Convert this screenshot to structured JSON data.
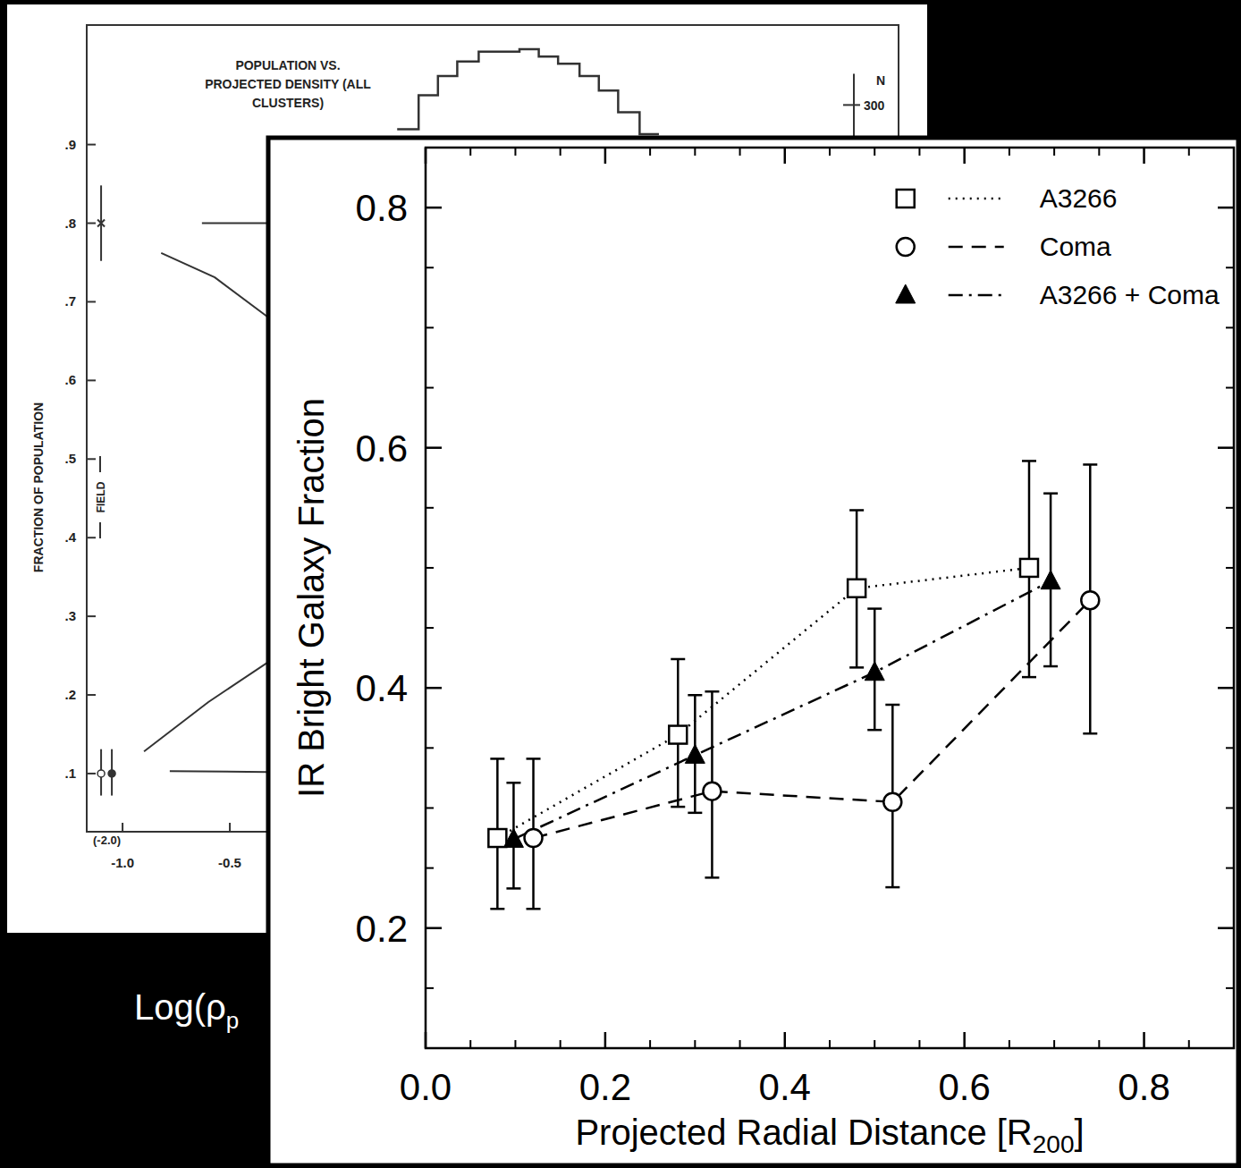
{
  "chart_data": [
    {
      "type": "line",
      "ylabel": "IR Bright Galaxy Fraction",
      "xlabel": "Projected Radial Distance [R",
      "xlabel_sub": "200",
      "xlabel_end": "]",
      "xlim": [
        0,
        0.9
      ],
      "ylim": [
        0.1,
        0.85
      ],
      "xticks": [
        {
          "value": 0,
          "label": "0.0"
        },
        {
          "value": 0.2,
          "label": "0.2"
        },
        {
          "value": 0.4,
          "label": "0.4"
        },
        {
          "value": 0.6,
          "label": "0.6"
        },
        {
          "value": 0.8,
          "label": "0.8"
        }
      ],
      "yticks": [
        {
          "value": 0.2,
          "label": "0.2"
        },
        {
          "value": 0.4,
          "label": "0.4"
        },
        {
          "value": 0.6,
          "label": "0.6"
        },
        {
          "value": 0.8,
          "label": "0.8"
        }
      ],
      "grid": false,
      "legend": "top-right",
      "series": [
        {
          "name": "A3266",
          "color": "#000000",
          "marker": "square",
          "line_style": "dotted",
          "x": [
            0.08,
            0.281,
            0.48,
            0.672
          ],
          "values": [
            0.275,
            0.361,
            0.483,
            0.5
          ],
          "lower": [
            0.216,
            0.301,
            0.417,
            0.409
          ],
          "upper": [
            0.341,
            0.424,
            0.548,
            0.589
          ]
        },
        {
          "name": "Coma",
          "color": "#000000",
          "marker": "circle",
          "line_style": "dashed",
          "x": [
            0.12,
            0.319,
            0.52,
            0.74
          ],
          "values": [
            0.275,
            0.314,
            0.305,
            0.473
          ],
          "lower": [
            0.216,
            0.242,
            0.234,
            0.362
          ],
          "upper": [
            0.341,
            0.397,
            0.386,
            0.586
          ]
        },
        {
          "name": "A3266 + Coma",
          "color": "#000000",
          "marker": "triangle",
          "line_style": "dashdot",
          "x": [
            0.098,
            0.3,
            0.5,
            0.696
          ],
          "values": [
            0.274,
            0.344,
            0.413,
            0.489
          ],
          "lower": [
            0.233,
            0.296,
            0.365,
            0.418
          ],
          "upper": [
            0.321,
            0.394,
            0.466,
            0.562
          ]
        }
      ]
    },
    {
      "type": "line",
      "title": "POPULATION VS. PROJECTED DENSITY (ALL CLUSTERS)",
      "ylabel": "FRACTION OF POPULATION",
      "xlabel": "Log(ρ",
      "xlabel_sub": "p",
      "y2label": "N",
      "xlim": [
        -1.167,
        2.617
      ],
      "ylim": [
        0.026,
        1.052
      ],
      "y2lim": [
        0,
        333
      ],
      "xticks": [
        {
          "value": -1,
          "label": "-1.0"
        },
        {
          "value": -0.5,
          "label": "-0.5"
        }
      ],
      "yticks": [
        {
          "value": 0.1,
          "label": ".1"
        },
        {
          "value": 0.2,
          "label": ".2"
        },
        {
          "value": 0.3,
          "label": ".3"
        },
        {
          "value": 0.4,
          "label": ".4"
        },
        {
          "value": 0.5,
          "label": ".5"
        },
        {
          "value": 0.6,
          "label": ".6"
        },
        {
          "value": 0.7,
          "label": ".7"
        },
        {
          "value": 0.8,
          "label": ".8"
        },
        {
          "value": 0.9,
          "label": ".9"
        }
      ],
      "y2ticks": [
        300
      ],
      "annotations": [
        "FIELD",
        "(-2.0)"
      ],
      "series": [
        {
          "type": "line",
          "color": "#333333",
          "x": [
            -0.63,
            -0.32
          ],
          "values": [
            0.8,
            0.8
          ]
        },
        {
          "type": "line",
          "color": "#333333",
          "x": [
            -0.82,
            -0.57,
            -0.32
          ],
          "values": [
            0.762,
            0.731,
            0.68
          ]
        },
        {
          "type": "line",
          "color": "#333333",
          "x": [
            -0.9,
            -0.6,
            -0.32
          ],
          "values": [
            0.128,
            0.191,
            0.242
          ]
        },
        {
          "type": "line",
          "color": "#333333",
          "x": [
            -0.78,
            -0.32
          ],
          "values": [
            0.103,
            0.102
          ]
        },
        {
          "type": "step",
          "axis": "y2",
          "color": "#333333",
          "bins": [
            0.28,
            0.38,
            0.47,
            0.56,
            0.66,
            0.75,
            0.85,
            0.94,
            1.03,
            1.13,
            1.22,
            1.31,
            1.41,
            1.5
          ],
          "values": [
            290,
            304,
            312,
            318,
            322,
            322,
            323,
            320,
            317,
            312,
            306,
            297,
            288
          ]
        },
        {
          "type": "scatter",
          "marker": "x",
          "color": "#333333",
          "x": [
            -1.1
          ],
          "values": [
            0.8
          ],
          "lower": [
            0.752
          ],
          "upper": [
            0.848
          ]
        },
        {
          "type": "scatter",
          "marker": "circle",
          "color": "#333333",
          "x": [
            -1.1,
            -1.05
          ],
          "values": [
            0.1,
            0.1
          ],
          "lower": [
            0.072,
            0.072
          ],
          "upper": [
            0.131,
            0.131
          ]
        }
      ]
    }
  ]
}
